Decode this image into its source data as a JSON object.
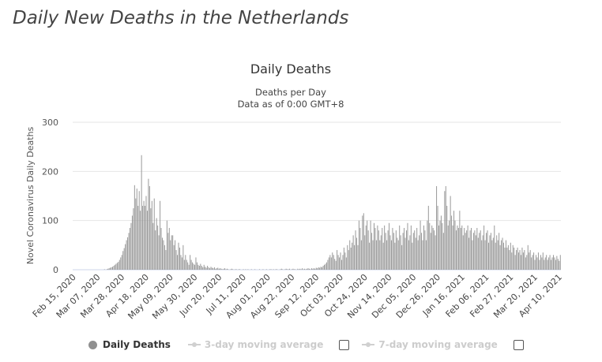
{
  "page": {
    "title": "Daily New Deaths in the Netherlands"
  },
  "chart_data": {
    "type": "bar",
    "title": "Daily Deaths",
    "subtitle_lines": [
      "Deaths per Day",
      "Data as of 0:00 GMT+8"
    ],
    "ylabel": "Novel Coronavirus Daily Deaths",
    "xlabel": "",
    "ylim": [
      0,
      300
    ],
    "yticks": [
      0,
      100,
      200,
      300
    ],
    "grid": true,
    "bar_color": "#999999",
    "x_start": "2020-02-15",
    "x_tick_labels": [
      "Feb 15, 2020",
      "Mar 07, 2020",
      "Mar 28, 2020",
      "Apr 18, 2020",
      "May 09, 2020",
      "May 30, 2020",
      "Jun 20, 2020",
      "Jul 11, 2020",
      "Aug 01, 2020",
      "Aug 22, 2020",
      "Sep 12, 2020",
      "Oct 03, 2020",
      "Oct 24, 2020",
      "Nov 14, 2020",
      "Dec 05, 2020",
      "Dec 26, 2020",
      "Jan 16, 2021",
      "Feb 06, 2021",
      "Feb 27, 2021",
      "Mar 20, 2021",
      "Apr 10, 2021"
    ],
    "x_tick_interval_days": 21,
    "series": [
      {
        "name": "Daily Deaths",
        "values": [
          0,
          0,
          0,
          0,
          0,
          0,
          0,
          0,
          0,
          0,
          0,
          0,
          0,
          0,
          0,
          0,
          0,
          0,
          0,
          0,
          0,
          0,
          0,
          0,
          0,
          0,
          0,
          1,
          0,
          1,
          2,
          3,
          4,
          5,
          6,
          8,
          10,
          12,
          14,
          16,
          20,
          25,
          30,
          38,
          44,
          52,
          60,
          66,
          75,
          85,
          95,
          110,
          125,
          172,
          145,
          165,
          130,
          160,
          120,
          233,
          130,
          140,
          130,
          150,
          120,
          185,
          170,
          125,
          140,
          95,
          145,
          80,
          105,
          90,
          70,
          140,
          85,
          65,
          60,
          50,
          40,
          100,
          75,
          85,
          60,
          70,
          70,
          50,
          60,
          40,
          30,
          55,
          45,
          30,
          25,
          50,
          20,
          30,
          20,
          15,
          10,
          30,
          20,
          15,
          12,
          10,
          25,
          15,
          10,
          8,
          12,
          8,
          5,
          10,
          6,
          4,
          8,
          5,
          3,
          6,
          4,
          3,
          5,
          2,
          3,
          4,
          2,
          3,
          2,
          1,
          2,
          3,
          1,
          2,
          1,
          0,
          1,
          2,
          1,
          0,
          1,
          1,
          0,
          1,
          1,
          0,
          0,
          1,
          0,
          1,
          0,
          1,
          0,
          0,
          1,
          0,
          0,
          1,
          0,
          0,
          0,
          1,
          0,
          0,
          1,
          0,
          0,
          1,
          0,
          0,
          1,
          1,
          0,
          1,
          0,
          1,
          1,
          0,
          0,
          1,
          2,
          1,
          0,
          1,
          2,
          1,
          1,
          2,
          0,
          1,
          2,
          1,
          1,
          0,
          2,
          1,
          2,
          1,
          3,
          1,
          2,
          1,
          2,
          3,
          2,
          1,
          3,
          2,
          3,
          2,
          4,
          3,
          5,
          4,
          6,
          5,
          8,
          10,
          12,
          15,
          20,
          25,
          30,
          25,
          35,
          30,
          22,
          18,
          40,
          30,
          25,
          35,
          20,
          30,
          45,
          35,
          25,
          50,
          40,
          60,
          45,
          55,
          70,
          50,
          80,
          65,
          50,
          100,
          85,
          60,
          110,
          115,
          70,
          90,
          100,
          80,
          55,
          100,
          75,
          60,
          95,
          85,
          60,
          90,
          80,
          60,
          70,
          85,
          55,
          90,
          75,
          60,
          80,
          95,
          70,
          60,
          85,
          75,
          55,
          80,
          65,
          60,
          90,
          70,
          50,
          75,
          85,
          65,
          80,
          95,
          60,
          70,
          90,
          55,
          75,
          80,
          65,
          85,
          60,
          70,
          100,
          75,
          60,
          90,
          80,
          60,
          100,
          130,
          95,
          75,
          90,
          85,
          80,
          70,
          170,
          130,
          90,
          100,
          110,
          95,
          75,
          160,
          170,
          130,
          90,
          100,
          150,
          110,
          90,
          120,
          100,
          80,
          90,
          85,
          120,
          85,
          90,
          70,
          85,
          75,
          80,
          90,
          65,
          80,
          85,
          60,
          75,
          80,
          70,
          85,
          65,
          75,
          80,
          60,
          70,
          90,
          60,
          75,
          80,
          55,
          70,
          75,
          60,
          65,
          90,
          55,
          70,
          60,
          75,
          50,
          60,
          65,
          55,
          45,
          60,
          45,
          50,
          40,
          55,
          35,
          50,
          45,
          30,
          40,
          45,
          35,
          40,
          30,
          45,
          35,
          40,
          25,
          30,
          50,
          35,
          40,
          25,
          30,
          35,
          20,
          30,
          25,
          35,
          20,
          30,
          25,
          35,
          20,
          25,
          30,
          20,
          25,
          30,
          20,
          25,
          30,
          25,
          20,
          28,
          22,
          18,
          30
        ]
      }
    ],
    "legend": {
      "position": "bottom-left",
      "items": [
        {
          "label": "Daily Deaths",
          "active": true
        },
        {
          "label": "3-day moving average",
          "active": false
        },
        {
          "label": "7-day moving average",
          "active": false
        }
      ]
    }
  }
}
